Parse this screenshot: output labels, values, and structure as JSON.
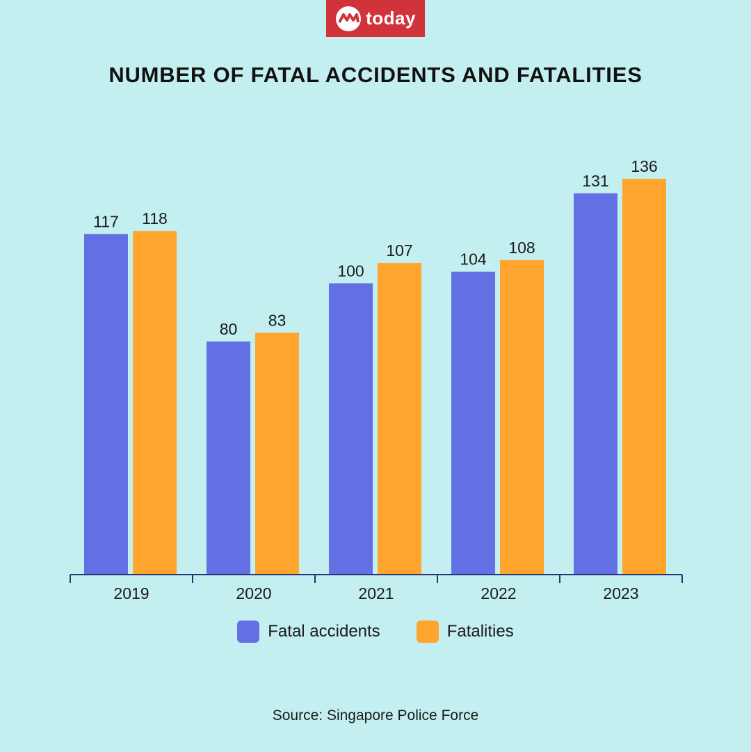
{
  "logo": {
    "text": "today"
  },
  "title": "NUMBER OF FATAL ACCIDENTS AND FATALITIES",
  "source": "Source: Singapore Police Force",
  "colors": {
    "background": "#c4eff0",
    "fatal_accidents": "#6370e3",
    "fatalities": "#ffa42d",
    "logo_bg": "#d0333a",
    "axis": "#27357a"
  },
  "chart_data": {
    "type": "bar",
    "title": "NUMBER OF FATAL ACCIDENTS AND FATALITIES",
    "xlabel": "",
    "ylabel": "",
    "categories": [
      "2019",
      "2020",
      "2021",
      "2022",
      "2023"
    ],
    "series": [
      {
        "name": "Fatal accidents",
        "color": "#6370e3",
        "values": [
          117,
          80,
          100,
          104,
          131
        ]
      },
      {
        "name": "Fatalities",
        "color": "#ffa42d",
        "values": [
          118,
          83,
          107,
          108,
          136
        ]
      }
    ],
    "ylim": [
      0,
      136
    ],
    "grid": false,
    "legend": "bottom-center",
    "data_labels": true
  }
}
